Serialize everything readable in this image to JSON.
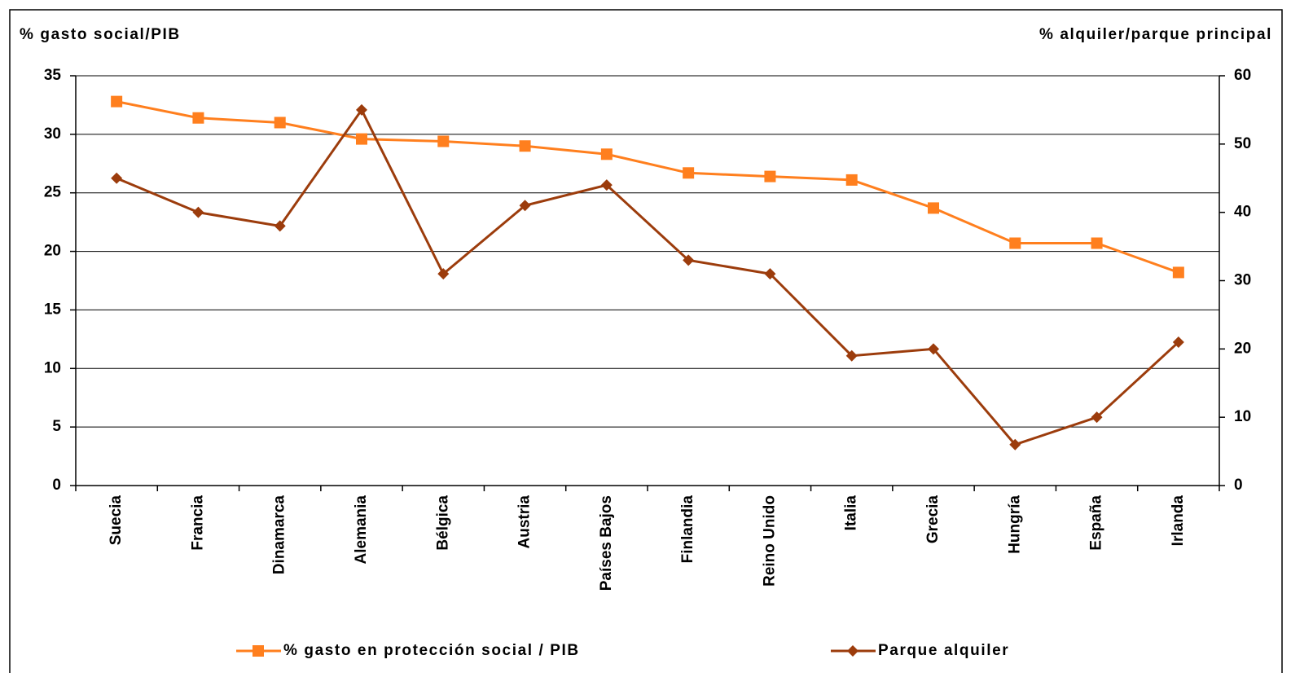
{
  "chart_data": {
    "type": "line",
    "ylabel": "% gasto social/PIB",
    "y2label": "% alquiler/parque principal",
    "categories": [
      "Suecia",
      "Francia",
      "Dinamarca",
      "Alemania",
      "Bélgica",
      "Austria",
      "Países Bajos",
      "Finlandia",
      "Reino Unido",
      "Italia",
      "Grecia",
      "Hungría",
      "España",
      "Irlanda"
    ],
    "series": [
      {
        "name": "% gasto en protección social / PIB",
        "color": "#ff7f1e",
        "marker": "square",
        "values": [
          32.8,
          31.4,
          31.0,
          29.6,
          29.4,
          29.0,
          28.3,
          26.7,
          26.4,
          26.1,
          23.7,
          20.7,
          20.7,
          18.2
        ]
      },
      {
        "name": "Parque alquiler",
        "color": "#9c3c0c",
        "marker": "diamond",
        "axis": "y2",
        "values": [
          45,
          40,
          38,
          55,
          31,
          41,
          44,
          33,
          31,
          19,
          20,
          6,
          10,
          21
        ]
      }
    ],
    "ylim": [
      0,
      35
    ],
    "yticks": [
      0,
      5,
      10,
      15,
      20,
      25,
      30,
      35
    ],
    "y2lim": [
      0,
      60
    ],
    "y2ticks": [
      0,
      10,
      20,
      30,
      40,
      50,
      60
    ],
    "grid": true,
    "legend": "bottom"
  }
}
